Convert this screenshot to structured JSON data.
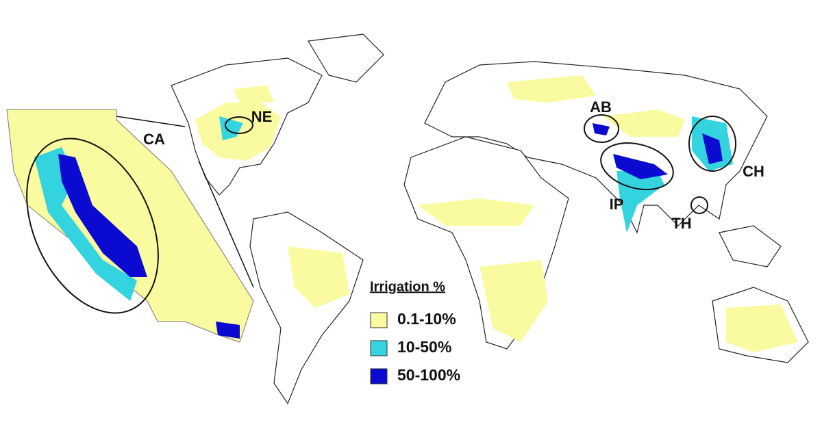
{
  "legend": {
    "title": "Irrigation %",
    "items": [
      {
        "label": "0.1-10%",
        "color": "#fafaa0"
      },
      {
        "label": "10-50%",
        "color": "#33d4e0"
      },
      {
        "label": "50-100%",
        "color": "#0a0ad0"
      }
    ]
  },
  "regions": [
    {
      "label": "CA"
    },
    {
      "label": "NE"
    },
    {
      "label": "AB"
    },
    {
      "label": "IP"
    },
    {
      "label": "TH"
    },
    {
      "label": "CH"
    }
  ]
}
